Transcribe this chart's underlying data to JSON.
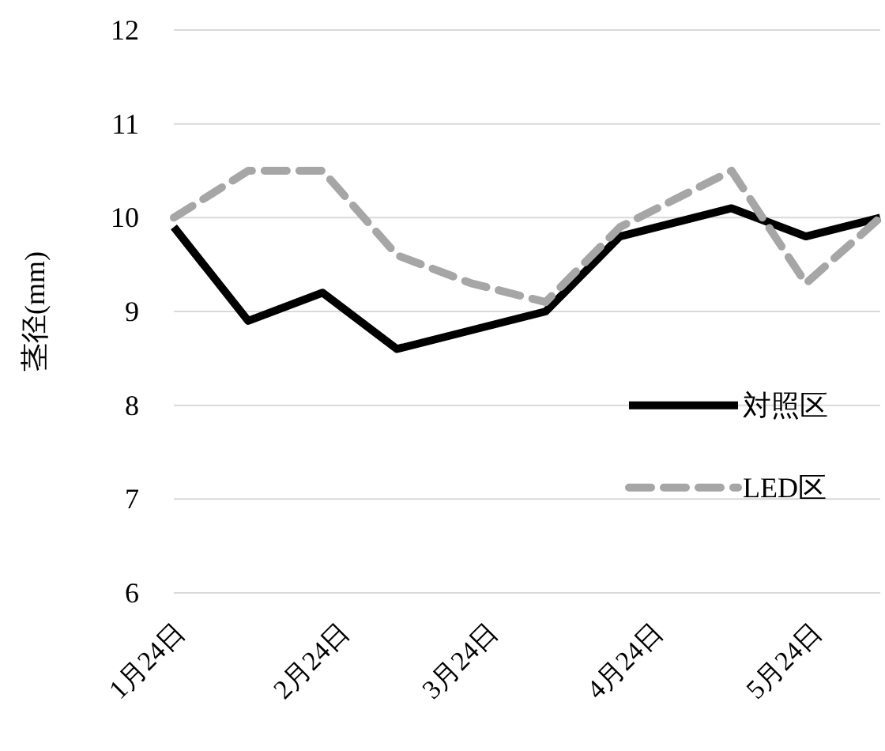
{
  "chart_data": {
    "type": "line",
    "ylabel": "茎径(mm)",
    "x": [
      "--01-24",
      "--02-07",
      "--02-21",
      "--03-07",
      "--03-21",
      "--04-04",
      "--04-18",
      "--05-09",
      "--05-23",
      "--06-06"
    ],
    "series": [
      {
        "name": "対照区",
        "color": "#000000",
        "line_style": "solid",
        "values": [
          9.9,
          8.9,
          9.2,
          8.6,
          8.8,
          9.0,
          9.8,
          10.1,
          9.8,
          10.0
        ]
      },
      {
        "name": "LED区",
        "color": "#a6a6a6",
        "line_style": "dashed",
        "values": [
          10.0,
          10.5,
          10.5,
          9.6,
          9.3,
          9.1,
          9.9,
          10.5,
          9.3,
          10.0
        ]
      }
    ],
    "xlim": [
      "--01-24",
      "--06-06"
    ],
    "xticks": [
      {
        "value": "--01-24",
        "label": "1月24日"
      },
      {
        "value": "--02-24",
        "label": "2月24日"
      },
      {
        "value": "--03-24",
        "label": "3月24日"
      },
      {
        "value": "--04-24",
        "label": "4月24日"
      },
      {
        "value": "--05-24",
        "label": "5月24日"
      }
    ],
    "ylim": [
      6,
      12
    ],
    "yticks": [
      6,
      7,
      8,
      9,
      10,
      11,
      12
    ],
    "grid": "y",
    "legend": "right",
    "marker": "none"
  }
}
